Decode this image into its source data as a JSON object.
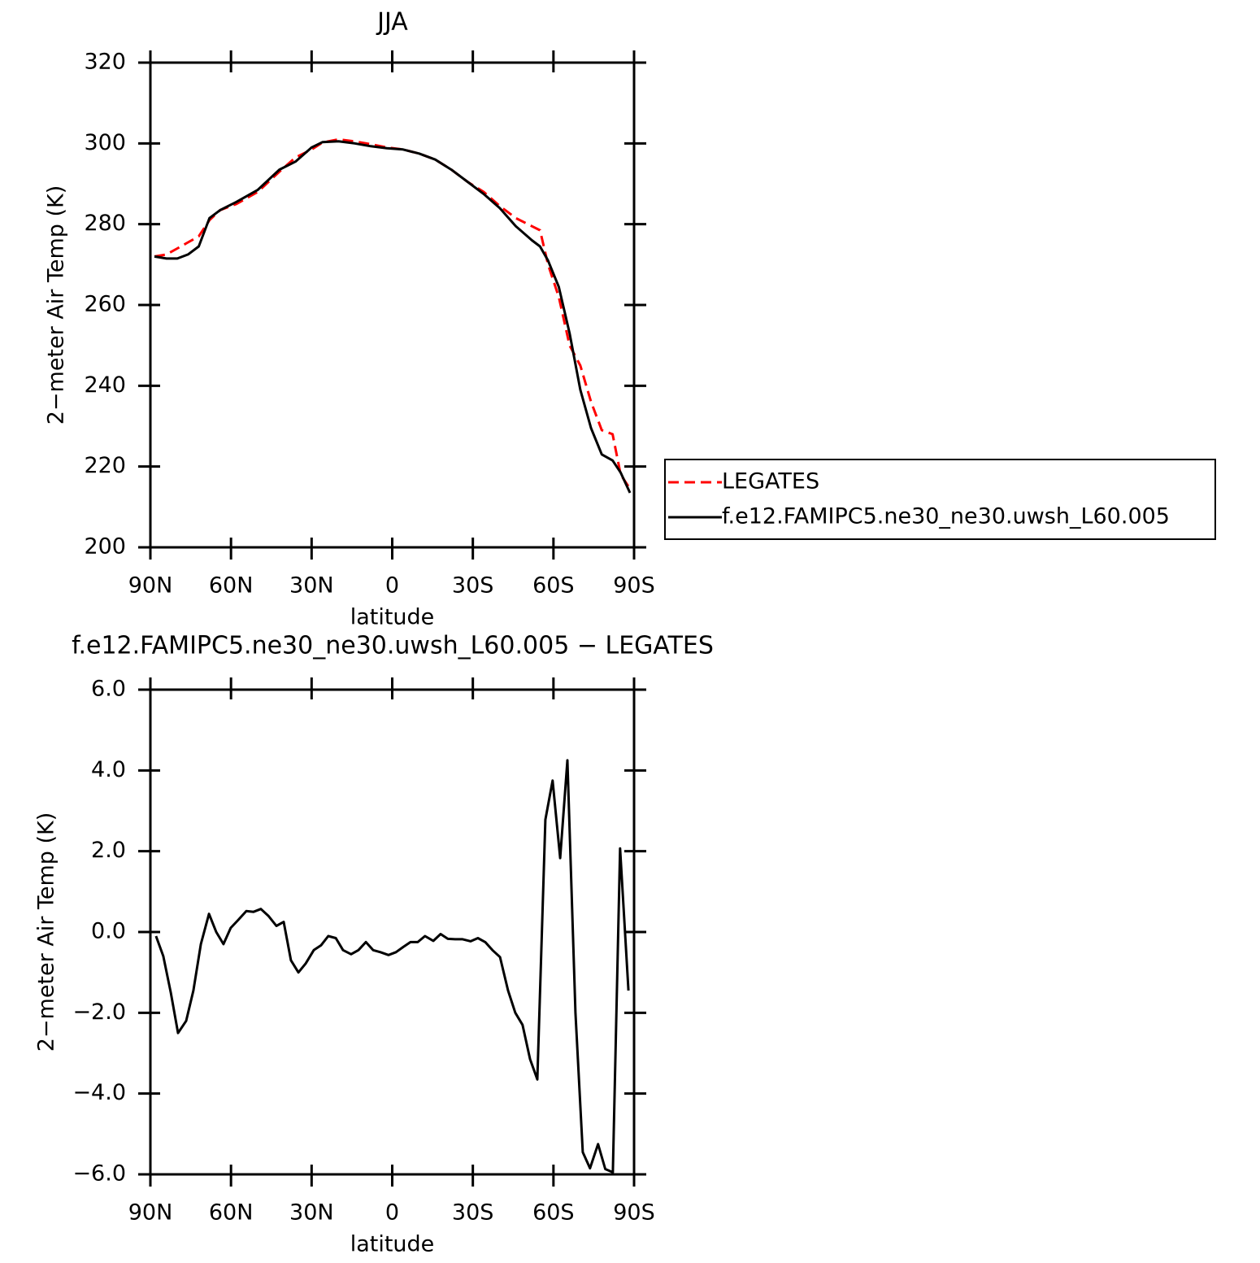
{
  "chart_data": [
    {
      "type": "line",
      "title": "JJA",
      "xlabel": "latitude",
      "ylabel": "2−meter Air Temp (K)",
      "xlim": [
        90,
        -90
      ],
      "ylim": [
        200,
        320
      ],
      "xticks": [
        {
          "value": 90,
          "label": "90N"
        },
        {
          "value": 60,
          "label": "60N"
        },
        {
          "value": 30,
          "label": "30N"
        },
        0,
        {
          "value": -30,
          "label": "30S"
        },
        {
          "value": -60,
          "label": "60S"
        },
        {
          "value": -90,
          "label": "90S"
        }
      ],
      "yticks": [
        200,
        220,
        240,
        260,
        280,
        300,
        320
      ],
      "legend": "right",
      "x": [
        88.5,
        84,
        80,
        76,
        72,
        68,
        64,
        58,
        50,
        42,
        36,
        30,
        26,
        20,
        14,
        8,
        2,
        -4,
        -10,
        -16,
        -22,
        -28,
        -34,
        -40,
        -46,
        -52,
        -55,
        -58,
        -62,
        -66,
        -70,
        -74,
        -78,
        -82,
        -85,
        -88.5
      ],
      "series": [
        {
          "name": "LEGATES",
          "color": "#ff0000",
          "dash": true,
          "values": [
            272,
            272.5,
            274,
            275.5,
            277,
            281,
            283.5,
            285,
            288,
            293,
            296.5,
            298.5,
            300.2,
            301,
            300.5,
            299.8,
            299,
            298.5,
            297.5,
            296,
            293.5,
            290.5,
            288,
            284.5,
            281.5,
            279.5,
            278.5,
            270,
            262,
            250,
            245,
            236,
            229,
            228,
            218,
            214.5
          ]
        },
        {
          "name": "f.e12.FAMIPC5.ne30_ne30.uwsh_L60.005",
          "color": "#000000",
          "dash": false,
          "values": [
            272,
            271.5,
            271.5,
            272.5,
            274.5,
            281.5,
            283.5,
            285.5,
            288.5,
            293.5,
            295.5,
            299,
            300.3,
            300.5,
            300,
            299.3,
            298.8,
            298.5,
            297.5,
            296,
            293.5,
            290.5,
            287.5,
            284,
            279.5,
            276,
            274.5,
            271,
            264.5,
            253,
            239,
            229.5,
            223,
            221.5,
            218.5,
            213.5
          ]
        }
      ]
    },
    {
      "type": "line",
      "title": "f.e12.FAMIPC5.ne30_ne30.uwsh_L60.005 − LEGATES",
      "xlabel": "latitude",
      "ylabel": "2−meter Air Temp (K)",
      "xlim": [
        90,
        -90
      ],
      "ylim": [
        -6,
        6
      ],
      "xticks": [
        {
          "value": 90,
          "label": "90N"
        },
        {
          "value": 60,
          "label": "60N"
        },
        {
          "value": 30,
          "label": "30N"
        },
        0,
        {
          "value": -30,
          "label": "30S"
        },
        {
          "value": -60,
          "label": "60S"
        },
        {
          "value": -90,
          "label": "90S"
        }
      ],
      "yticks": [
        {
          "value": -6,
          "label": "−6.0"
        },
        {
          "value": -4,
          "label": "−4.0"
        },
        {
          "value": -2,
          "label": "−2.0"
        },
        {
          "value": 0,
          "label": "0.0"
        },
        {
          "value": 2,
          "label": "2.0"
        },
        {
          "value": 4,
          "label": "4.0"
        },
        {
          "value": 6,
          "label": "6.0"
        }
      ],
      "x": [
        87.9,
        85.2,
        82.4,
        79.7,
        76.7,
        74,
        71.2,
        68.2,
        65.5,
        62.8,
        60.1,
        57.3,
        54.3,
        51.6,
        48.9,
        46.1,
        43.1,
        40.4,
        37.7,
        34.9,
        32.2,
        29.2,
        26.5,
        23.8,
        21,
        18.3,
        15.3,
        12.6,
        9.8,
        7.1,
        4.4,
        1.4,
        -1.4,
        -4.1,
        -6.8,
        -9.5,
        -12.2,
        -15.3,
        -18,
        -20.7,
        -23.4,
        -26.2,
        -29.2,
        -31.9,
        -34.6,
        -37.3,
        -40.1,
        -43.1,
        -45.8,
        -48.5,
        -51.3,
        -54,
        -57,
        -59.7,
        -62.5,
        -65.2,
        -68.2,
        -70.9,
        -73.6,
        -76.6,
        -79.3,
        -82.1,
        -84.8,
        -87.9
      ],
      "series": [
        {
          "color": "#000000",
          "dash": false,
          "values": [
            -0.1,
            -0.6,
            -1.5,
            -2.5,
            -2.2,
            -1.45,
            -0.3,
            0.45,
            0,
            -0.3,
            0.1,
            0.3,
            0.52,
            0.5,
            0.57,
            0.4,
            0.15,
            0.25,
            -0.7,
            -1,
            -0.78,
            -0.45,
            -0.33,
            -0.1,
            -0.15,
            -0.45,
            -0.55,
            -0.45,
            -0.25,
            -0.45,
            -0.5,
            -0.57,
            -0.5,
            -0.37,
            -0.25,
            -0.25,
            -0.1,
            -0.22,
            -0.05,
            -0.17,
            -0.18,
            -0.18,
            -0.23,
            -0.15,
            -0.25,
            -0.45,
            -0.62,
            -1.45,
            -2,
            -2.3,
            -3.15,
            -3.65,
            2.78,
            3.75,
            1.83,
            4.25,
            -2,
            -5.45,
            -5.85,
            -5.25,
            -5.87,
            -5.95,
            2.07,
            -1.45
          ]
        }
      ]
    }
  ]
}
